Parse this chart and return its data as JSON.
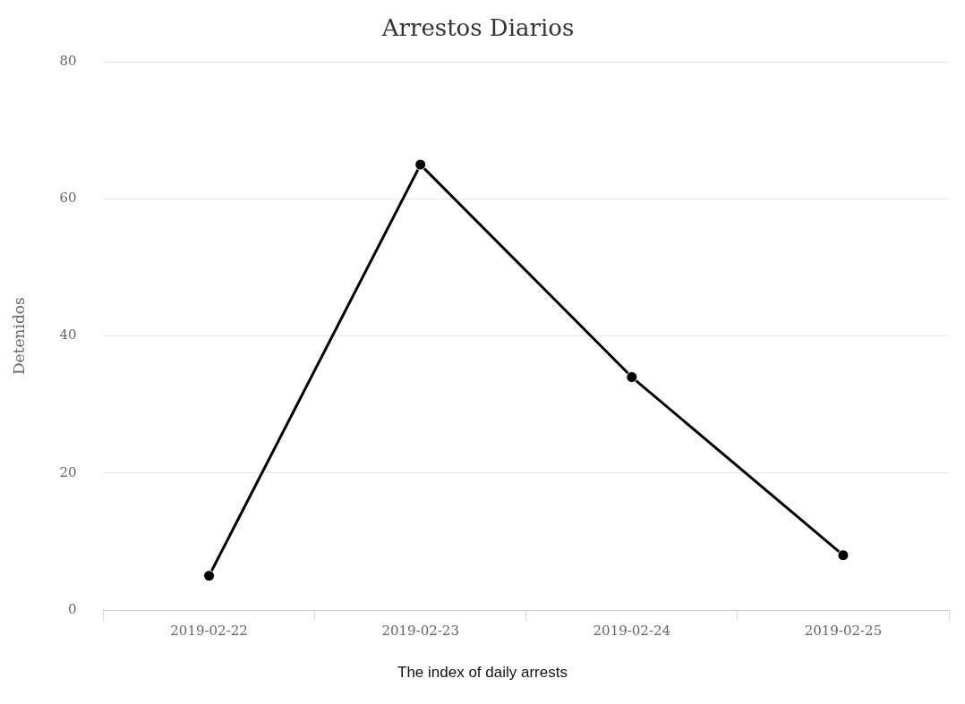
{
  "chart_data": {
    "type": "line",
    "title": "Arrestos Diarios",
    "ylabel": "Detenidos",
    "categories": [
      "2019-02-22",
      "2019-02-23",
      "2019-02-24",
      "2019-02-25"
    ],
    "series": [
      {
        "color": "#000000",
        "values": [
          5,
          65,
          34,
          8
        ]
      }
    ],
    "ylim": [
      0,
      80
    ],
    "yticks": [
      0,
      20,
      40,
      60,
      80
    ],
    "grid": "y",
    "legend": false,
    "marker": "circle",
    "line_style": "solid",
    "annotations": [
      "The index of daily arrests"
    ]
  }
}
